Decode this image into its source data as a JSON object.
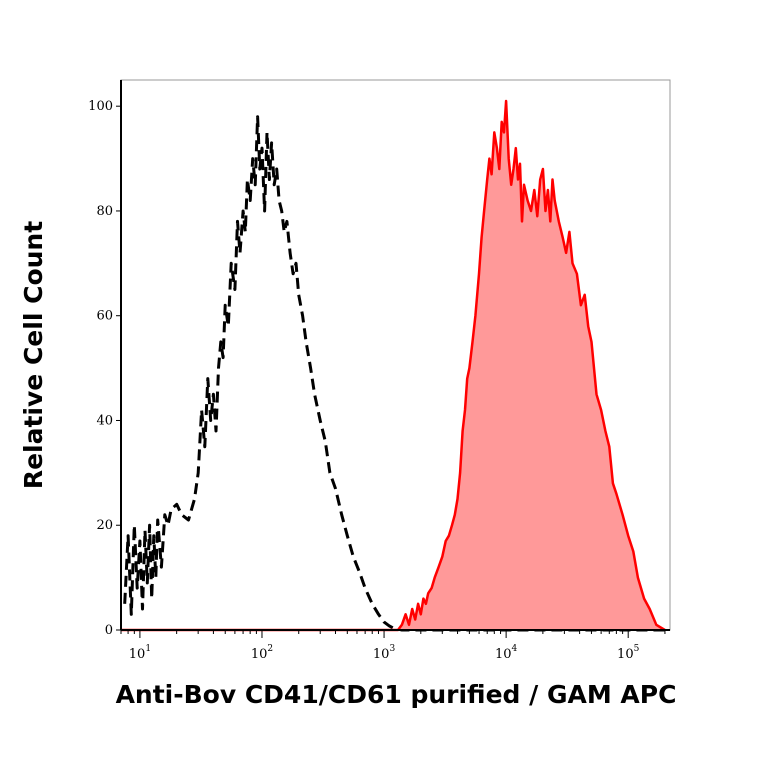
{
  "chart_data": {
    "type": "area",
    "title": "",
    "xlabel": "Anti-Bov CD41/CD61 purified / GAM APC",
    "ylabel": "Relative Cell Count",
    "xscale": "log",
    "xlim": [
      7,
      220000
    ],
    "ylim": [
      0,
      105
    ],
    "grid": false,
    "legend": "none",
    "x_ticks": [
      {
        "base": "10",
        "exp": "1",
        "value": 10
      },
      {
        "base": "10",
        "exp": "2",
        "value": 100
      },
      {
        "base": "10",
        "exp": "3",
        "value": 1000
      },
      {
        "base": "10",
        "exp": "4",
        "value": 10000
      },
      {
        "base": "10",
        "exp": "5",
        "value": 100000
      }
    ],
    "y_ticks": [
      {
        "label": "0",
        "value": 0
      },
      {
        "label": "20",
        "value": 20
      },
      {
        "label": "40",
        "value": 40
      },
      {
        "label": "60",
        "value": 60
      },
      {
        "label": "80",
        "value": 80
      },
      {
        "label": "100",
        "value": 100
      }
    ],
    "series": [
      {
        "style": "dashed",
        "color": "#000000",
        "fill": "none",
        "x": [
          7.5,
          8,
          8.5,
          9,
          9.5,
          10,
          10.5,
          11,
          11.5,
          12,
          12.5,
          13,
          13.5,
          14,
          15,
          16,
          17,
          18,
          20,
          22,
          25,
          28,
          30,
          32,
          34,
          36,
          38,
          40,
          42,
          44,
          46,
          48,
          50,
          53,
          56,
          60,
          63,
          66,
          70,
          73,
          76,
          80,
          84,
          88,
          92,
          96,
          100,
          105,
          110,
          115,
          120,
          126,
          132,
          138,
          145,
          152,
          160,
          170,
          180,
          190,
          200,
          215,
          230,
          250,
          270,
          300,
          330,
          360,
          400,
          450,
          500,
          560,
          630,
          700,
          800,
          900,
          1000,
          1100,
          1200,
          1300,
          1400,
          1600,
          2000,
          3000,
          5000,
          10000,
          50000,
          100000,
          200000
        ],
        "y": [
          5,
          18,
          3,
          20,
          8,
          17,
          4,
          19,
          9,
          20,
          6,
          18,
          10,
          21,
          12,
          22,
          20,
          23,
          24,
          22,
          21,
          25,
          30,
          42,
          35,
          48,
          40,
          45,
          38,
          50,
          55,
          52,
          62,
          58,
          70,
          65,
          78,
          72,
          80,
          76,
          86,
          82,
          90,
          85,
          98,
          88,
          92,
          80,
          95,
          86,
          93,
          85,
          88,
          82,
          80,
          76,
          78,
          72,
          68,
          70,
          64,
          60,
          55,
          50,
          45,
          40,
          36,
          30,
          27,
          22,
          18,
          14,
          11,
          8,
          5,
          3,
          1.5,
          0.8,
          0.3,
          0.2,
          0,
          0,
          0,
          0,
          0,
          0,
          0,
          0,
          0
        ]
      },
      {
        "style": "solid",
        "color": "#ff0000",
        "fill": "#ff9999",
        "x": [
          7,
          100,
          1000,
          1300,
          1400,
          1500,
          1600,
          1700,
          1800,
          1900,
          2000,
          2100,
          2200,
          2300,
          2450,
          2600,
          2800,
          3000,
          3200,
          3400,
          3600,
          3800,
          4000,
          4200,
          4400,
          4600,
          4800,
          5000,
          5300,
          5600,
          6000,
          6300,
          6600,
          7000,
          7300,
          7600,
          8000,
          8400,
          8800,
          9200,
          9600,
          10000,
          10500,
          11000,
          11500,
          12000,
          12500,
          13000,
          13500,
          14000,
          15000,
          16000,
          17000,
          18000,
          19000,
          20000,
          21000,
          22000,
          23000,
          24000,
          25000,
          27000,
          29000,
          31000,
          33000,
          35000,
          38000,
          41000,
          44000,
          47000,
          50000,
          55000,
          60000,
          65000,
          70000,
          75000,
          80000,
          90000,
          100000,
          110000,
          120000,
          135000,
          150000,
          170000,
          200000
        ],
        "y": [
          0,
          0,
          0,
          0,
          1,
          3,
          1,
          4,
          2,
          5,
          3,
          6,
          5,
          7,
          8,
          10,
          12,
          14,
          17,
          18,
          20,
          22,
          25,
          30,
          38,
          42,
          48,
          50,
          55,
          60,
          68,
          75,
          80,
          86,
          90,
          87,
          95,
          92,
          88,
          97,
          95,
          101,
          90,
          85,
          88,
          92,
          86,
          89,
          78,
          85,
          82,
          80,
          84,
          79,
          86,
          88,
          80,
          84,
          78,
          86,
          82,
          78,
          75,
          72,
          76,
          70,
          68,
          62,
          64,
          58,
          55,
          45,
          42,
          38,
          35,
          28,
          26,
          22,
          18,
          15,
          10,
          6,
          4,
          1,
          0
        ]
      }
    ]
  }
}
